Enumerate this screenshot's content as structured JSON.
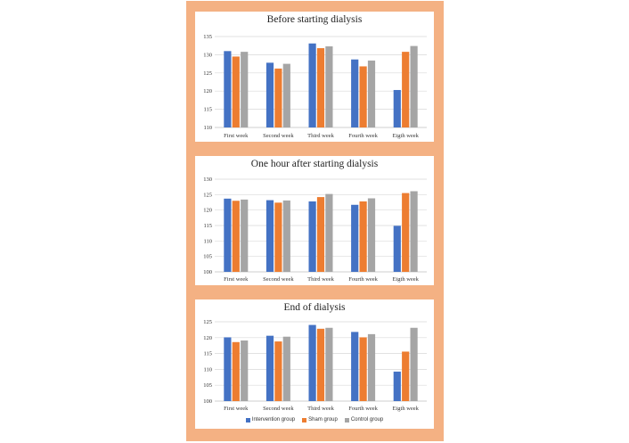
{
  "colors": {
    "frame": "#f4b183",
    "series": [
      "#4472c4",
      "#ed7d31",
      "#a5a5a5"
    ],
    "grid": "#d9d9d9"
  },
  "legend": {
    "items": [
      {
        "label": "Intervention group",
        "color": "#4472c4"
      },
      {
        "label": "Sham group",
        "color": "#ed7d31"
      },
      {
        "label": "Control group",
        "color": "#a5a5a5"
      }
    ]
  },
  "chart_data": [
    {
      "type": "bar",
      "title": "Before starting dialysis",
      "categories": [
        "First week",
        "Second week",
        "Third week",
        "Fourth week",
        "Eigth week"
      ],
      "ylim": [
        110,
        135
      ],
      "yticks": [
        110,
        115,
        120,
        125,
        130,
        135
      ],
      "series": [
        {
          "name": "Intervention group",
          "values": [
            131.0,
            127.8,
            133.1,
            128.7,
            120.3
          ]
        },
        {
          "name": "Sham group",
          "values": [
            129.5,
            126.2,
            131.8,
            126.8,
            130.8
          ]
        },
        {
          "name": "Control group",
          "values": [
            130.8,
            127.5,
            132.3,
            128.4,
            132.4
          ]
        }
      ]
    },
    {
      "type": "bar",
      "title": "One hour after starting dialysis",
      "categories": [
        "First week",
        "Second week",
        "Third week",
        "Fourth week",
        "Eigth week"
      ],
      "ylim": [
        100,
        130
      ],
      "yticks": [
        100,
        105,
        110,
        115,
        120,
        125,
        130
      ],
      "series": [
        {
          "name": "Intervention group",
          "values": [
            123.7,
            123.2,
            122.8,
            121.7,
            114.9
          ]
        },
        {
          "name": "Sham group",
          "values": [
            123.0,
            122.4,
            124.2,
            122.8,
            125.5
          ]
        },
        {
          "name": "Control group",
          "values": [
            123.4,
            123.1,
            125.2,
            123.8,
            126.1
          ]
        }
      ]
    },
    {
      "type": "bar",
      "title": "End of dialysis",
      "categories": [
        "First week",
        "Second week",
        "Third week",
        "Fourth week",
        "Eigth week"
      ],
      "ylim": [
        100,
        125
      ],
      "yticks": [
        100,
        105,
        110,
        115,
        120,
        125
      ],
      "series": [
        {
          "name": "Intervention group",
          "values": [
            120.1,
            120.6,
            124.0,
            121.8,
            109.3
          ]
        },
        {
          "name": "Sham group",
          "values": [
            118.6,
            118.8,
            122.8,
            120.1,
            115.6
          ]
        },
        {
          "name": "Control group",
          "values": [
            119.1,
            120.3,
            123.1,
            121.1,
            123.1
          ]
        }
      ]
    }
  ]
}
